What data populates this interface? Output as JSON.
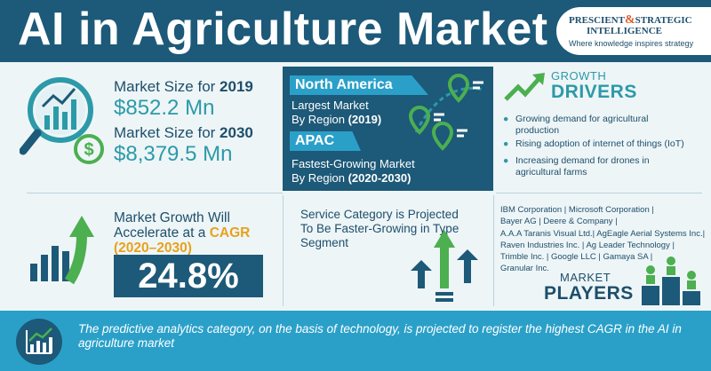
{
  "header": {
    "title": "AI in Agriculture Market",
    "logo": {
      "line1_a": "PRESCIENT",
      "line1_amp": "&",
      "line1_b": "STRATEGIC",
      "line2": "INTELLIGENCE",
      "tagline": "Where knowledge inspires strategy"
    }
  },
  "market_size": {
    "label_2019_prefix": "Market Size for ",
    "year_2019": "2019",
    "value_2019": "$852.2 Mn",
    "label_2030_prefix": "Market Size for ",
    "year_2030": "2030",
    "value_2030": "$8,379.5 Mn"
  },
  "region": {
    "largest_tag": "North America",
    "largest_line1": "Largest Market",
    "largest_line2_prefix": "By Region ",
    "largest_years": "(2019)",
    "fastest_tag": "APAC",
    "fastest_line1": "Fastest-Growing Market",
    "fastest_line2_prefix": "By Region ",
    "fastest_years": "(2020-2030)"
  },
  "growth_drivers": {
    "label": "GROWTH",
    "title": "DRIVERS",
    "items": [
      "Growing demand for agricultural production",
      "Rising adoption of internet of things (IoT)",
      "Increasing demand for drones in agricultural farms"
    ]
  },
  "cagr": {
    "line1": "Market Growth Will",
    "line2_prefix": "Accelerate at a ",
    "line2_accent": "CAGR",
    "line3": "(2020–2030)",
    "value": "24.8%"
  },
  "service": {
    "text": "Service Category is Projected To Be Faster-Growing in Type Segment"
  },
  "players": {
    "lines": [
      "IBM Corporation | Microsoft Corporation |",
      "Bayer AG | Deere & Company |",
      "A.A.A Taranis Visual Ltd.| AgEagle Aerial Systems Inc.|",
      "Raven Industries Inc. | Ag Leader Technology |",
      "Trimble Inc. | Google LLC | Gamaya SA |",
      "Granular Inc."
    ],
    "label": "MARKET",
    "title": "PLAYERS"
  },
  "footer": {
    "text": "The predictive analytics category, on the basis of technology, is projected to register the highest CAGR in the AI in agriculture market"
  },
  "colors": {
    "navy": "#1d5978",
    "teal": "#2c9aa8",
    "cyan": "#2aa0c9",
    "green": "#4caf50",
    "orange": "#e6a21c",
    "background": "#eef5f7"
  },
  "icons": [
    "magnifier-chart-icon",
    "dollar-coin-icon",
    "map-pin-icon",
    "growth-arrow-icon",
    "bar-chart-arrow-icon",
    "up-arrows-icon",
    "podium-players-icon",
    "analytics-chart-icon"
  ]
}
